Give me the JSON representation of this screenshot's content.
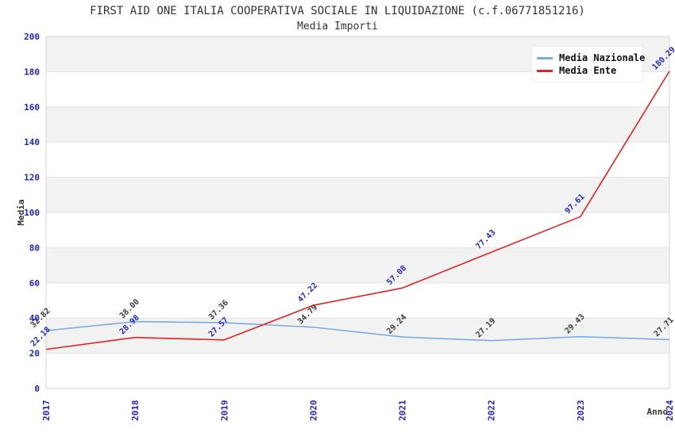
{
  "title": "FIRST AID ONE ITALIA COOPERATIVA SOCIALE IN LIQUIDAZIONE (c.f.06771851216)",
  "subtitle": "Media Importi",
  "legend": {
    "entries": [
      {
        "label": "Media Nazionale"
      },
      {
        "label": "Media Ente"
      }
    ]
  },
  "chart_data": {
    "type": "line",
    "title": "FIRST AID ONE ITALIA COOPERATIVA SOCIALE IN LIQUIDAZIONE (c.f.06771851216)",
    "subtitle": "Media Importi",
    "xlabel": "Anno",
    "ylabel": "Media",
    "x": [
      2017,
      2018,
      2019,
      2020,
      2021,
      2022,
      2023,
      2024
    ],
    "x_tick_labels": [
      "2017",
      "2018",
      "2019",
      "2020",
      "2021",
      "2022",
      "2023",
      "2024"
    ],
    "ylim": [
      0,
      200
    ],
    "ytick_step": 20,
    "y_tick_labels": [
      "0",
      "20",
      "40",
      "60",
      "80",
      "100",
      "120",
      "140",
      "160",
      "180",
      "200"
    ],
    "grid": "horizontal-bands-alternating",
    "legend_position": "top-right",
    "series": [
      {
        "name": "Media Nazionale",
        "color": "#7aadde",
        "label_color": "#3b3b3b",
        "values": [
          32.82,
          38.0,
          37.36,
          34.79,
          29.24,
          27.19,
          29.43,
          27.71
        ],
        "labels": [
          "32.82",
          "38.00",
          "37.36",
          "34.79",
          "29.24",
          "27.19",
          "29.43",
          "27.71"
        ]
      },
      {
        "name": "Media Ente",
        "color": "#e32222",
        "label_color": "#2626c9",
        "values": [
          22.18,
          28.98,
          27.57,
          47.22,
          57.08,
          77.43,
          97.61,
          180.29
        ],
        "labels": [
          "22.18",
          "28.98",
          "27.57",
          "47.22",
          "57.08",
          "77.43",
          "97.61",
          "180.29"
        ]
      }
    ]
  },
  "colors": {
    "tick_blue": "#2222cc",
    "axis_text_black": "#333333",
    "band_gray": "#f2f2f2",
    "gridline": "#e3e3e3",
    "spine": "#d4d4d4"
  }
}
